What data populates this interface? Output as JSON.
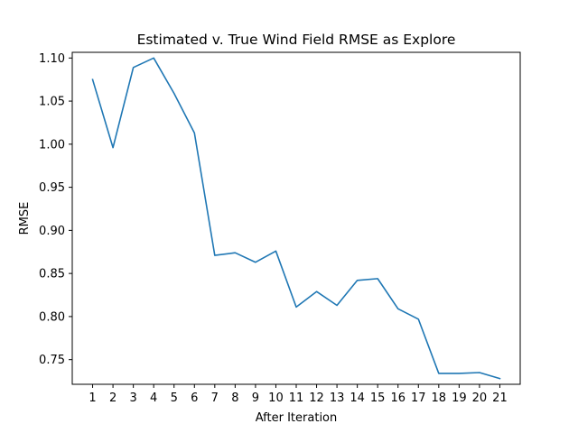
{
  "chart_data": {
    "type": "line",
    "title": "Estimated v. True Wind Field RMSE as Explore",
    "xlabel": "After Iteration",
    "ylabel": "RMSE",
    "x": [
      1,
      2,
      3,
      4,
      5,
      6,
      7,
      8,
      9,
      10,
      11,
      12,
      13,
      14,
      15,
      16,
      17,
      18,
      19,
      20,
      21
    ],
    "series": [
      {
        "values": [
          1.075,
          0.996,
          1.089,
          1.1,
          1.059,
          1.013,
          0.871,
          0.874,
          0.863,
          0.876,
          0.811,
          0.829,
          0.813,
          0.842,
          0.844,
          0.809,
          0.797,
          0.734,
          0.734,
          0.735,
          0.728
        ],
        "color": "#1f77b4"
      }
    ],
    "xlim": [
      0.0,
      22.0
    ],
    "ylim": [
      0.7214,
      1.1066
    ],
    "yticks": [
      0.75,
      0.8,
      0.85,
      0.9,
      0.95,
      1.0,
      1.05,
      1.1
    ],
    "ytick_labels": [
      "0.75",
      "0.80",
      "0.85",
      "0.90",
      "0.95",
      "1.00",
      "1.05",
      "1.10"
    ],
    "xticks": [
      1,
      2,
      3,
      4,
      5,
      6,
      7,
      8,
      9,
      10,
      11,
      12,
      13,
      14,
      15,
      16,
      17,
      18,
      19,
      20,
      21
    ],
    "xtick_labels": [
      "1",
      "2",
      "3",
      "4",
      "5",
      "6",
      "7",
      "8",
      "9",
      "10",
      "11",
      "12",
      "13",
      "14",
      "15",
      "16",
      "17",
      "18",
      "19",
      "20",
      "21"
    ],
    "grid": false,
    "legend": "none"
  }
}
